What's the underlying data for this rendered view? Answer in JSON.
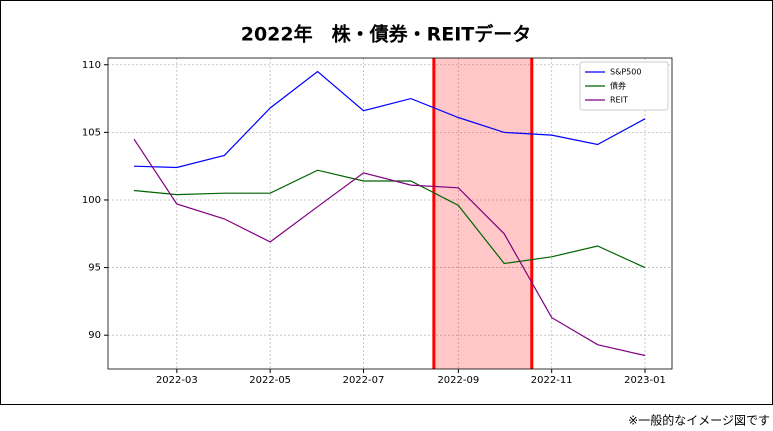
{
  "chart_data": {
    "type": "line",
    "title": "2022年　株・債券・REITデータ",
    "note": "※一般的なイメージ図です",
    "x": [
      "2022-02",
      "2022-03",
      "2022-04",
      "2022-05",
      "2022-06",
      "2022-07",
      "2022-08",
      "2022-09",
      "2022-10",
      "2022-11",
      "2022-12",
      "2023-01"
    ],
    "series": [
      {
        "name": "S&P500",
        "color": "#0000ff",
        "values": [
          102.5,
          102.4,
          103.3,
          106.8,
          109.5,
          106.6,
          107.5,
          106.1,
          105.0,
          104.8,
          104.1,
          106.0
        ]
      },
      {
        "name": "債券",
        "color": "#006400",
        "values": [
          100.7,
          100.4,
          100.5,
          100.5,
          102.2,
          101.4,
          101.4,
          99.6,
          95.3,
          95.8,
          96.6,
          95.0
        ]
      },
      {
        "name": "REIT",
        "color": "#800080",
        "values": [
          104.5,
          99.7,
          98.6,
          96.9,
          99.5,
          102.0,
          101.1,
          100.9,
          97.5,
          91.3,
          89.3,
          88.5
        ]
      }
    ],
    "xticks": [
      "2022-03",
      "2022-05",
      "2022-07",
      "2022-09",
      "2022-11",
      "2023-01"
    ],
    "ylim": [
      87.5,
      110.5
    ],
    "yticks": [
      90,
      95,
      100,
      105,
      110
    ],
    "highlight": {
      "x": [
        "2022-08-16",
        "2022-10-19"
      ],
      "color": "#ff0000"
    },
    "grid": true,
    "legend": "upper-right"
  }
}
